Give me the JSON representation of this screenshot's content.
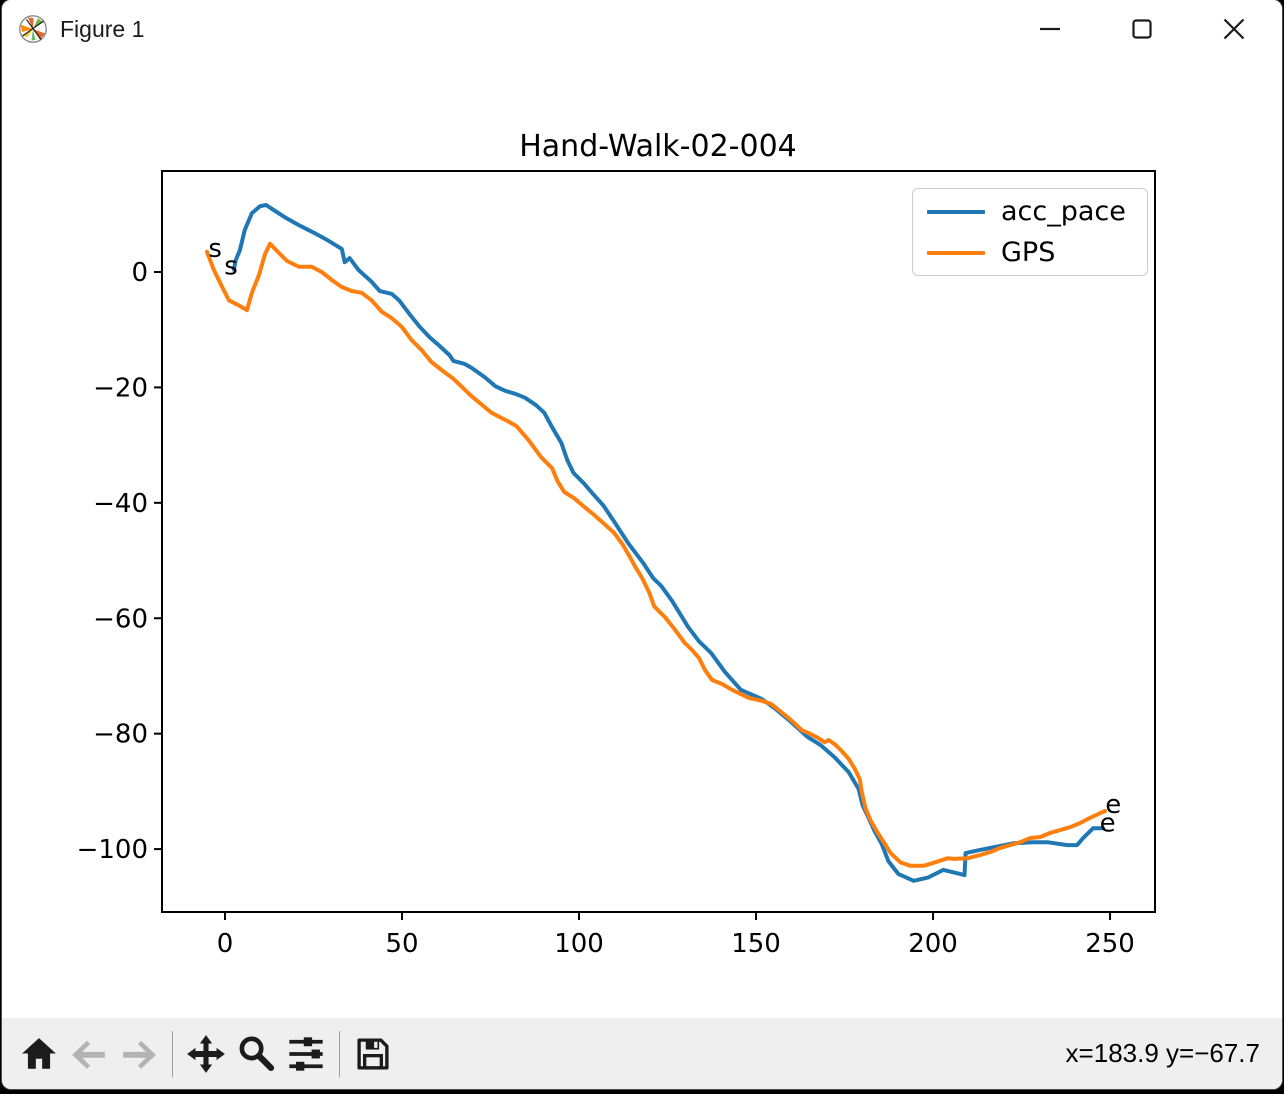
{
  "window": {
    "title": "Figure 1",
    "controls": [
      {
        "name": "minimize"
      },
      {
        "name": "maximize"
      },
      {
        "name": "close"
      }
    ]
  },
  "chart_data": {
    "type": "line",
    "title": "Hand-Walk-02-004",
    "xlabel": "",
    "ylabel": "",
    "grid": false,
    "xlim": [
      -17.8,
      262.7
    ],
    "ylim": [
      -110.9,
      17.5
    ],
    "x_ticks": [
      0,
      50,
      100,
      150,
      200,
      250
    ],
    "x_tick_labels": [
      "0",
      "50",
      "100",
      "150",
      "200",
      "250"
    ],
    "y_ticks": [
      0,
      -20,
      -40,
      -60,
      -80,
      -100
    ],
    "y_tick_labels": [
      "0",
      "−20",
      "−40",
      "−60",
      "−80",
      "−100"
    ],
    "legend": {
      "position": "upper right",
      "entries": [
        {
          "label": "acc_pace",
          "color": "#1f77b4"
        },
        {
          "label": "GPS",
          "color": "#ff7f0e"
        }
      ]
    },
    "annotations": [
      {
        "text": "s",
        "x": -2.8,
        "y": 4.2
      },
      {
        "text": "s",
        "x": 1.7,
        "y": 1.1
      },
      {
        "text": "e",
        "x": 250.9,
        "y": -92.2
      },
      {
        "text": "e",
        "x": 249.3,
        "y": -95.4
      }
    ],
    "series": [
      {
        "name": "acc_pace",
        "color": "#1f77b4",
        "points": [
          [
            2.5,
            0.4
          ],
          [
            3.0,
            2.0
          ],
          [
            4.2,
            3.8
          ],
          [
            5.6,
            7.3
          ],
          [
            7.6,
            10.2
          ],
          [
            9.9,
            11.4
          ],
          [
            11.6,
            11.6
          ],
          [
            13.8,
            10.7
          ],
          [
            16.9,
            9.5
          ],
          [
            20.9,
            8.1
          ],
          [
            25.1,
            6.8
          ],
          [
            29.0,
            5.5
          ],
          [
            33.0,
            4.0
          ],
          [
            33.8,
            1.7
          ],
          [
            35.2,
            2.4
          ],
          [
            37.8,
            0.3
          ],
          [
            41.4,
            -1.7
          ],
          [
            43.7,
            -3.3
          ],
          [
            47.1,
            -3.8
          ],
          [
            49.3,
            -5.0
          ],
          [
            52.1,
            -7.3
          ],
          [
            55.0,
            -9.5
          ],
          [
            57.8,
            -11.3
          ],
          [
            60.6,
            -12.8
          ],
          [
            63.4,
            -14.4
          ],
          [
            64.5,
            -15.4
          ],
          [
            67.6,
            -15.9
          ],
          [
            69.6,
            -16.6
          ],
          [
            73.3,
            -18.2
          ],
          [
            76.4,
            -19.8
          ],
          [
            79.2,
            -20.6
          ],
          [
            82.0,
            -21.1
          ],
          [
            84.8,
            -21.8
          ],
          [
            87.9,
            -23.1
          ],
          [
            90.2,
            -24.4
          ],
          [
            92.4,
            -26.9
          ],
          [
            95.0,
            -29.6
          ],
          [
            96.7,
            -32.6
          ],
          [
            98.4,
            -34.8
          ],
          [
            101.5,
            -36.7
          ],
          [
            104.0,
            -38.5
          ],
          [
            106.8,
            -40.4
          ],
          [
            110.2,
            -43.5
          ],
          [
            113.9,
            -47.0
          ],
          [
            118.1,
            -50.4
          ],
          [
            120.9,
            -53.0
          ],
          [
            123.2,
            -54.4
          ],
          [
            126.3,
            -57.0
          ],
          [
            130.8,
            -61.5
          ],
          [
            133.9,
            -64.0
          ],
          [
            137.3,
            -66.0
          ],
          [
            141.2,
            -69.3
          ],
          [
            145.7,
            -72.4
          ],
          [
            151.6,
            -74.0
          ],
          [
            155.3,
            -75.6
          ],
          [
            159.2,
            -77.6
          ],
          [
            164.6,
            -80.6
          ],
          [
            168.3,
            -82.0
          ],
          [
            172.2,
            -84.1
          ],
          [
            176.2,
            -86.7
          ],
          [
            179.0,
            -89.6
          ],
          [
            180.1,
            -92.4
          ],
          [
            181.8,
            -94.6
          ],
          [
            183.5,
            -96.9
          ],
          [
            185.5,
            -99.1
          ],
          [
            187.4,
            -102.1
          ],
          [
            190.2,
            -104.3
          ],
          [
            194.5,
            -105.5
          ],
          [
            198.7,
            -104.9
          ],
          [
            202.9,
            -103.6
          ],
          [
            206.9,
            -104.2
          ],
          [
            208.9,
            -104.5
          ],
          [
            209.2,
            -100.7
          ],
          [
            212.8,
            -100.2
          ],
          [
            217.0,
            -99.7
          ],
          [
            222.7,
            -99.0
          ],
          [
            228.3,
            -98.8
          ],
          [
            232.3,
            -98.8
          ],
          [
            237.9,
            -99.3
          ],
          [
            240.7,
            -99.3
          ],
          [
            242.4,
            -98.1
          ],
          [
            245.2,
            -96.4
          ],
          [
            248.0,
            -96.4
          ]
        ]
      },
      {
        "name": "GPS",
        "color": "#ff7f0e",
        "points": [
          [
            -5.1,
            3.5
          ],
          [
            -3.1,
            0.3
          ],
          [
            -0.8,
            -2.6
          ],
          [
            1.1,
            -4.9
          ],
          [
            4.2,
            -5.9
          ],
          [
            6.2,
            -6.6
          ],
          [
            7.6,
            -3.6
          ],
          [
            9.6,
            -0.5
          ],
          [
            11.3,
            3.1
          ],
          [
            12.7,
            4.9
          ],
          [
            14.9,
            3.5
          ],
          [
            17.5,
            1.9
          ],
          [
            20.9,
            0.9
          ],
          [
            24.5,
            0.9
          ],
          [
            27.3,
            0.0
          ],
          [
            30.2,
            -1.4
          ],
          [
            33.0,
            -2.6
          ],
          [
            35.8,
            -3.3
          ],
          [
            38.6,
            -3.6
          ],
          [
            41.4,
            -4.9
          ],
          [
            44.3,
            -6.9
          ],
          [
            47.1,
            -8.0
          ],
          [
            49.9,
            -9.5
          ],
          [
            52.7,
            -11.8
          ],
          [
            55.5,
            -13.5
          ],
          [
            58.3,
            -15.6
          ],
          [
            61.2,
            -17.0
          ],
          [
            64.5,
            -18.5
          ],
          [
            69.6,
            -21.5
          ],
          [
            75.3,
            -24.4
          ],
          [
            80.3,
            -26.0
          ],
          [
            82.3,
            -26.7
          ],
          [
            85.7,
            -29.1
          ],
          [
            89.3,
            -32.1
          ],
          [
            92.4,
            -34.0
          ],
          [
            93.9,
            -36.2
          ],
          [
            95.8,
            -38.1
          ],
          [
            98.6,
            -39.2
          ],
          [
            101.5,
            -40.7
          ],
          [
            104.3,
            -42.1
          ],
          [
            106.5,
            -43.3
          ],
          [
            109.9,
            -45.2
          ],
          [
            112.2,
            -47.1
          ],
          [
            114.2,
            -49.2
          ],
          [
            115.8,
            -51.0
          ],
          [
            117.8,
            -53.0
          ],
          [
            119.8,
            -55.5
          ],
          [
            121.2,
            -57.9
          ],
          [
            122.6,
            -58.8
          ],
          [
            124.3,
            -59.8
          ],
          [
            127.1,
            -62.0
          ],
          [
            129.9,
            -64.3
          ],
          [
            131.9,
            -65.5
          ],
          [
            133.9,
            -66.9
          ],
          [
            135.6,
            -69.0
          ],
          [
            137.6,
            -70.7
          ],
          [
            140.4,
            -71.4
          ],
          [
            143.2,
            -72.4
          ],
          [
            148.0,
            -73.8
          ],
          [
            151.6,
            -74.3
          ],
          [
            154.4,
            -74.9
          ],
          [
            156.4,
            -75.9
          ],
          [
            159.2,
            -77.3
          ],
          [
            160.9,
            -78.2
          ],
          [
            162.9,
            -79.4
          ],
          [
            164.9,
            -79.9
          ],
          [
            167.7,
            -80.8
          ],
          [
            169.4,
            -81.5
          ],
          [
            170.5,
            -81.1
          ],
          [
            172.2,
            -81.8
          ],
          [
            174.2,
            -83.0
          ],
          [
            176.2,
            -84.4
          ],
          [
            177.9,
            -86.1
          ],
          [
            179.3,
            -87.9
          ],
          [
            179.8,
            -89.8
          ],
          [
            180.4,
            -91.5
          ],
          [
            180.9,
            -92.9
          ],
          [
            182.3,
            -95.0
          ],
          [
            184.3,
            -97.1
          ],
          [
            186.3,
            -99.0
          ],
          [
            188.0,
            -100.7
          ],
          [
            190.8,
            -102.3
          ],
          [
            193.6,
            -102.9
          ],
          [
            197.3,
            -102.9
          ],
          [
            200.1,
            -102.4
          ],
          [
            204.1,
            -101.6
          ],
          [
            205.8,
            -101.7
          ],
          [
            209.7,
            -101.6
          ],
          [
            213.4,
            -101.0
          ],
          [
            216.2,
            -100.5
          ],
          [
            219.0,
            -99.8
          ],
          [
            221.8,
            -99.3
          ],
          [
            224.6,
            -98.8
          ],
          [
            227.4,
            -98.1
          ],
          [
            230.3,
            -97.9
          ],
          [
            233.1,
            -97.2
          ],
          [
            235.9,
            -96.7
          ],
          [
            238.7,
            -96.2
          ],
          [
            241.5,
            -95.5
          ],
          [
            244.3,
            -94.6
          ],
          [
            247.1,
            -93.8
          ],
          [
            248.6,
            -93.4
          ]
        ]
      }
    ]
  },
  "toolbar": {
    "buttons": [
      {
        "name": "home",
        "enabled": true
      },
      {
        "name": "back",
        "enabled": false
      },
      {
        "name": "forward",
        "enabled": false
      },
      {
        "name": "pan",
        "enabled": true
      },
      {
        "name": "zoom-to-rect",
        "enabled": true
      },
      {
        "name": "configure-subplots",
        "enabled": true
      },
      {
        "name": "save",
        "enabled": true
      }
    ],
    "status": "x=183.9 y=−67.7"
  },
  "colors": {
    "accent_blue": "#1f77b4",
    "accent_orange": "#ff7f0e",
    "titlebar_bg": "#ffffff",
    "toolbar_bg": "#efefef",
    "spine": "#000000"
  }
}
